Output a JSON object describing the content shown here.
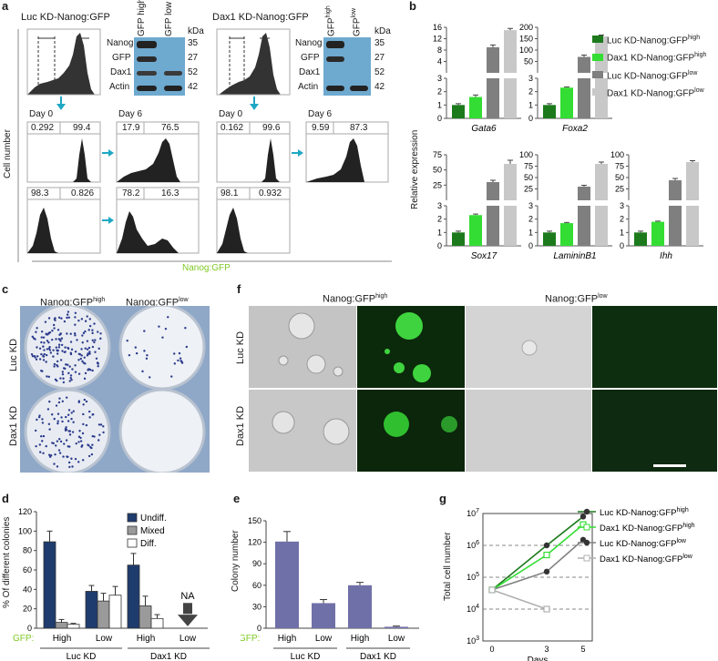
{
  "panels": {
    "a": {
      "label": "a",
      "left_title": "Luc KD-Nanog:GFP",
      "right_title": "Dax1 KD-Nanog:GFP",
      "blot_col_left": [
        "GFP high",
        "GFP low"
      ],
      "blot_col_right": [
        "GFP",
        "high",
        "GFP",
        "low"
      ],
      "blot_rows": [
        "Nanog",
        "GFP",
        "Dax1",
        "Actin"
      ],
      "kda_label": "kDa",
      "kda": [
        "35",
        "27",
        "52",
        "42"
      ],
      "day0": "Day 0",
      "day6": "Day 6",
      "luc_day0_high": [
        "0.292",
        "99.4"
      ],
      "luc_day0_low": [
        "98.3",
        "0.826"
      ],
      "luc_day6_high": [
        "17.9",
        "76.5"
      ],
      "luc_day6_low": [
        "78.2",
        "16.3"
      ],
      "dax_day0_high": [
        "0.162",
        "99.6"
      ],
      "dax_day0_low": [
        "98.1",
        "0.932"
      ],
      "dax_day6_high": [
        "9.59",
        "87.3"
      ],
      "yaxis": "Cell number",
      "xaxis": "Nanog:GFP",
      "colors": {
        "arrow": "#1ea8c4",
        "nanog_gfp": "#7ec926",
        "blot": "#6ea9cf"
      }
    },
    "b": {
      "label": "b",
      "ylabel": "Relative expression",
      "legend": [
        {
          "name": "Luc KD-Nanog:GFP",
          "sup": "high",
          "color": "#1c7a1c"
        },
        {
          "name": "Dax1 KD-Nanog:GFP",
          "sup": "high",
          "color": "#33dd33"
        },
        {
          "name": "Luc KD-Nanog:GFP",
          "sup": "low",
          "color": "#7f7f7f"
        },
        {
          "name": "Dax1 KD-Nanog:GFP",
          "sup": "low",
          "color": "#c8c8c8"
        }
      ]
    },
    "c": {
      "label": "c",
      "col1": "Nanog:GFP",
      "col1_sup": "high",
      "col2": "Nanog:GFP",
      "col2_sup": "low",
      "row1": "Luc KD",
      "row2": "Dax1 KD"
    },
    "d": {
      "label": "d",
      "legend": [
        "Undiff.",
        "Mixed",
        "Diff."
      ],
      "na": "NA",
      "gfp": "GFP:",
      "groups": [
        "Luc KD",
        "Dax1 KD"
      ]
    },
    "e": {
      "label": "e",
      "gfp": "GFP:",
      "groups": [
        "Luc KD",
        "Dax1 KD"
      ]
    },
    "f": {
      "label": "f",
      "col1": "Nanog:GFP",
      "col1_sup": "high",
      "col2": "Nanog:GFP",
      "col2_sup": "low",
      "row1": "Luc KD",
      "row2": "Dax1 KD"
    },
    "g": {
      "label": "g",
      "legend": [
        {
          "name": "Luc KD-Nanog:GFP",
          "sup": "high",
          "color": "#1c7a1c",
          "marker": "dot"
        },
        {
          "name": "Dax1 KD-Nanog:GFP",
          "sup": "high",
          "color": "#33dd33",
          "marker": "square"
        },
        {
          "name": "Luc KD-Nanog:GFP",
          "sup": "low",
          "color": "#808080",
          "marker": "dot"
        },
        {
          "name": "Dax1 KD-Nanog:GFP",
          "sup": "low",
          "color": "#b0b0b0",
          "marker": "square"
        }
      ]
    }
  },
  "chart_data": [
    {
      "type": "bar",
      "panel": "b",
      "gene": "Gata6",
      "series_values": [
        1.0,
        1.6,
        9,
        15
      ],
      "errors": [
        0.1,
        0.15,
        0.8,
        0.6
      ],
      "lower_ticks": [
        "0",
        "1",
        "2",
        "3"
      ],
      "upper_ticks": [
        "4",
        "8",
        "12",
        "16"
      ]
    },
    {
      "type": "bar",
      "panel": "b",
      "gene": "Foxa2",
      "series_values": [
        1.0,
        2.3,
        70,
        160
      ],
      "errors": [
        0.1,
        0.05,
        8,
        6
      ],
      "lower_ticks": [
        "0",
        "1",
        "2",
        "3"
      ],
      "upper_ticks": [
        "50",
        "100",
        "150",
        "200"
      ]
    },
    {
      "type": "bar",
      "panel": "b",
      "gene": "Sox17",
      "series_values": [
        1.0,
        2.3,
        30,
        60
      ],
      "errors": [
        0.1,
        0.08,
        3,
        6
      ],
      "lower_ticks": [
        "0",
        "1",
        "2",
        "3"
      ],
      "upper_ticks": [
        "25",
        "50",
        "75"
      ]
    },
    {
      "type": "bar",
      "panel": "b",
      "gene": "LamininB1",
      "series_values": [
        1.0,
        1.7,
        30,
        80
      ],
      "errors": [
        0.1,
        0.05,
        3,
        4
      ],
      "lower_ticks": [
        "0",
        "1",
        "2",
        "3"
      ],
      "upper_ticks": [
        "25",
        "50",
        "75",
        "100"
      ]
    },
    {
      "type": "bar",
      "panel": "b",
      "gene": "Ihh",
      "series_values": [
        1.0,
        1.8,
        44,
        84
      ],
      "errors": [
        0.1,
        0.05,
        4,
        3
      ],
      "lower_ticks": [
        "0",
        "1",
        "2",
        "3"
      ],
      "upper_ticks": [
        "25",
        "50",
        "75",
        "100"
      ]
    },
    {
      "type": "bar",
      "panel": "d",
      "ylabel": "% Of different colonies",
      "ylim": [
        0,
        120
      ],
      "yticks": [
        "0",
        "20",
        "40",
        "60",
        "80",
        "100",
        "120"
      ],
      "categories": [
        "High",
        "Low",
        "High",
        "Low"
      ],
      "series": [
        {
          "name": "Undiff.",
          "color": "#1f3c6e",
          "values": [
            89,
            38,
            65,
            null
          ],
          "errors": [
            11,
            6,
            12,
            null
          ]
        },
        {
          "name": "Mixed",
          "color": "#9a9a9a",
          "values": [
            6,
            28,
            23,
            null
          ],
          "errors": [
            3,
            8,
            10,
            null
          ]
        },
        {
          "name": "Diff.",
          "color": "#ffffff",
          "values": [
            4,
            34,
            10,
            null
          ],
          "errors": [
            1,
            9,
            4,
            null
          ]
        }
      ]
    },
    {
      "type": "bar",
      "panel": "e",
      "ylabel": "Colony number",
      "ylim": [
        0,
        150
      ],
      "yticks": [
        "0",
        "30",
        "60",
        "90",
        "120",
        "150"
      ],
      "categories": [
        "High",
        "Low",
        "High",
        "Low"
      ],
      "values": [
        121,
        35,
        60,
        2
      ],
      "errors": [
        14,
        5,
        4,
        1
      ],
      "color": "#7070a8"
    },
    {
      "type": "line",
      "panel": "g",
      "ylabel": "Total cell number",
      "xlabel": "Days",
      "scale": "log",
      "yticks": [
        "10^3",
        "10^4",
        "10^5",
        "10^6",
        "10^7"
      ],
      "x": [
        0,
        3,
        5
      ],
      "series": [
        {
          "name": "Luc KD-Nanog:GFPhigh",
          "values": [
            40000,
            1000000,
            8000000
          ]
        },
        {
          "name": "Dax1 KD-Nanog:GFPhigh",
          "values": [
            40000,
            500000,
            4500000
          ]
        },
        {
          "name": "Luc KD-Nanog:GFPlow",
          "values": [
            40000,
            150000,
            1500000
          ]
        },
        {
          "name": "Dax1 KD-Nanog:GFPlow",
          "values": [
            40000,
            10000,
            null
          ]
        }
      ]
    }
  ]
}
